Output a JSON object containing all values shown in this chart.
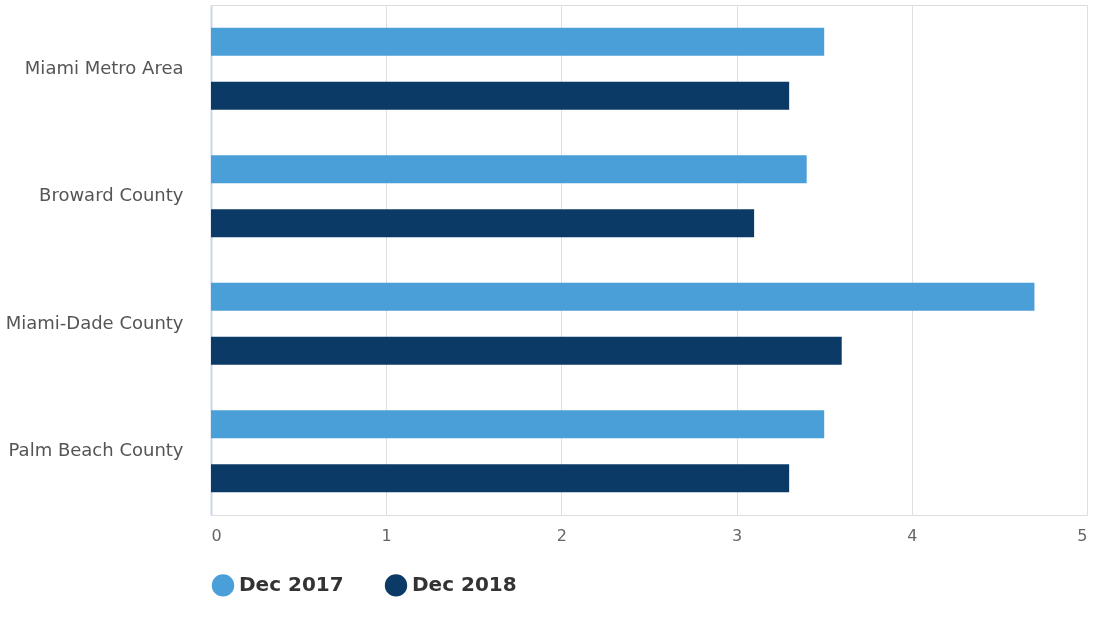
{
  "chart_data": {
    "type": "bar",
    "orientation": "horizontal",
    "categories": [
      "Miami Metro Area",
      "Broward County",
      "Miami-Dade County",
      "Palm Beach County"
    ],
    "series": [
      {
        "name": "Dec 2017",
        "color": "#4a9fd8",
        "values": [
          3.5,
          3.4,
          4.7,
          3.5
        ]
      },
      {
        "name": "Dec 2018",
        "color": "#0b3a66",
        "values": [
          3.3,
          3.1,
          3.6,
          3.3
        ]
      }
    ],
    "xlim": [
      0,
      5
    ],
    "xticks": [
      0,
      1,
      2,
      3,
      4,
      5
    ],
    "grid": "x",
    "legend": "bottom"
  }
}
